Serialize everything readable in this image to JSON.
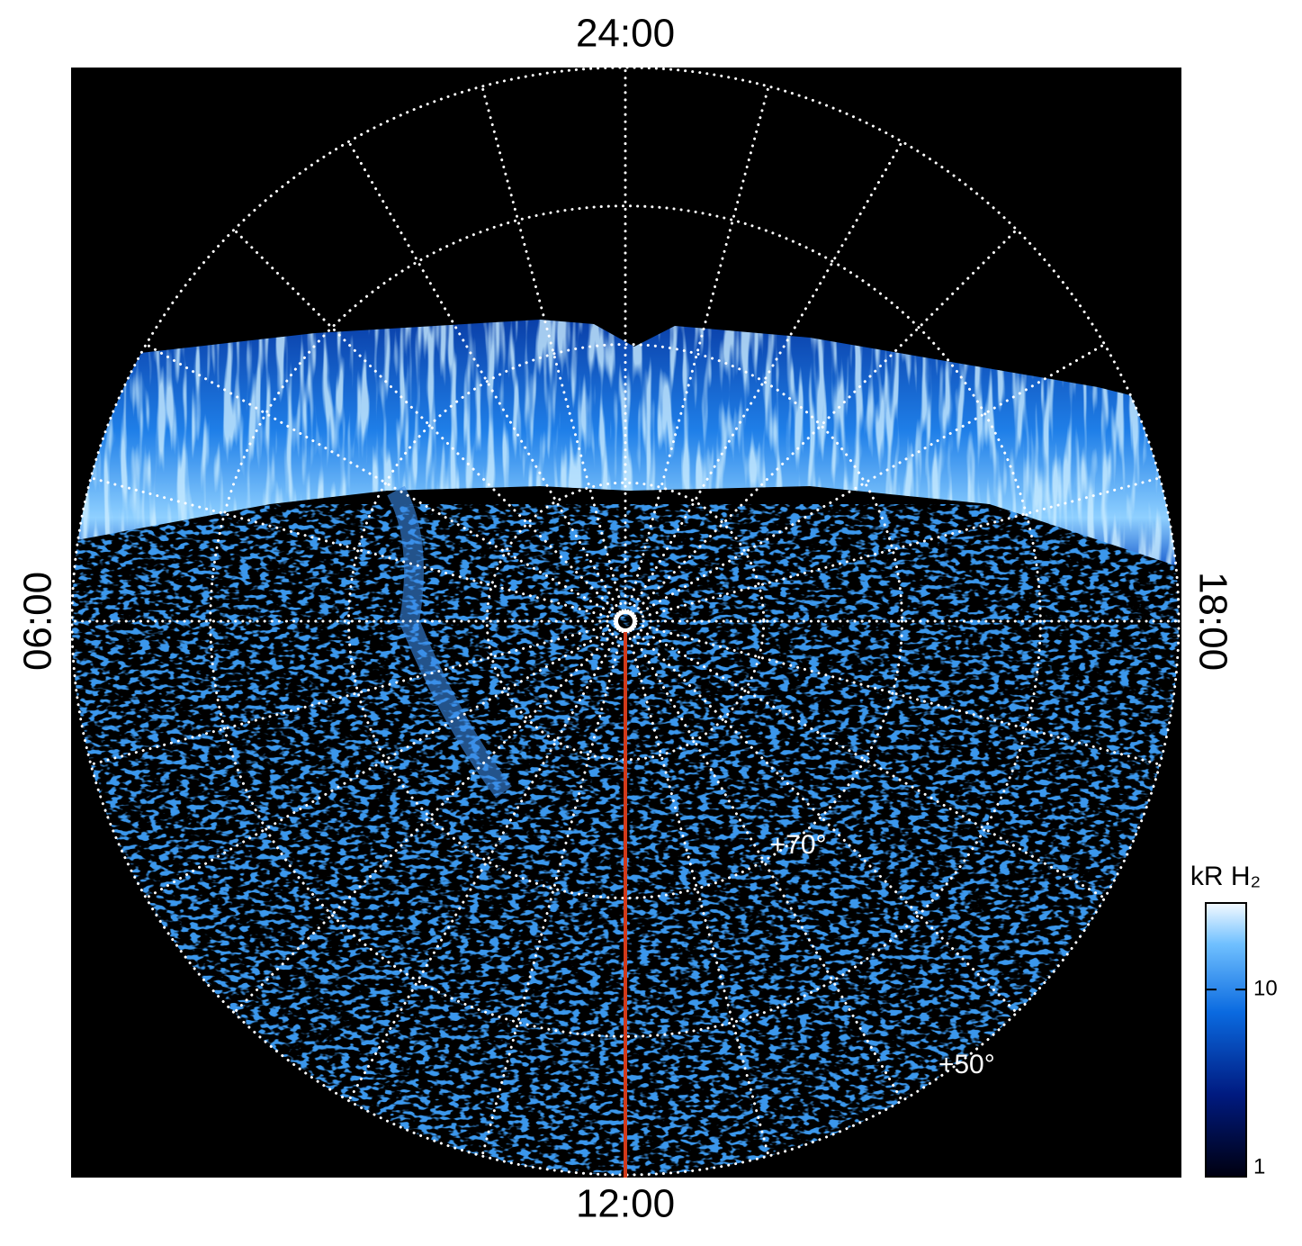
{
  "chart_data": {
    "type": "polar-image",
    "theta_ticks": [
      {
        "value": 24,
        "label": "24:00"
      },
      {
        "value": 6,
        "label": "06:00"
      },
      {
        "value": 12,
        "label": "12:00"
      },
      {
        "value": 18,
        "label": "18:00"
      }
    ],
    "rlim": [
      90,
      50
    ],
    "rticks": [
      {
        "value": 80,
        "label": null
      },
      {
        "value": 70,
        "label": "+70°"
      },
      {
        "value": 60,
        "label": null
      },
      {
        "value": 50,
        "label": "+50°"
      }
    ],
    "meridian_step_hours": 1,
    "colorbar": {
      "title": "kR H₂",
      "lim": [
        1,
        29
      ],
      "ticks": [
        1,
        10
      ],
      "log": true
    }
  }
}
